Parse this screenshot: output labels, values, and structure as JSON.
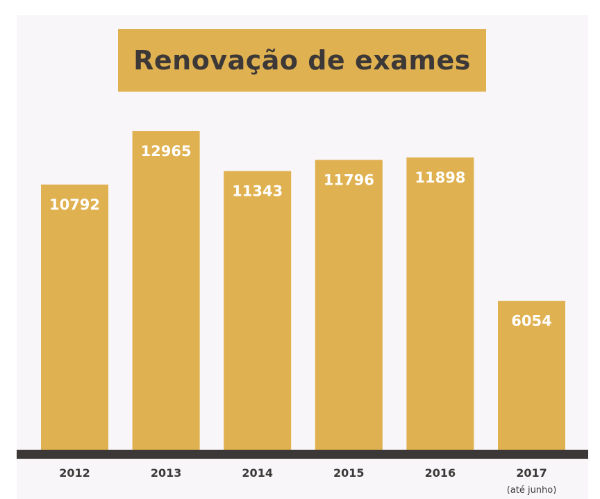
{
  "colors": {
    "background": "#f8f6f8",
    "accent": "#e0b150",
    "title_text": "#3c3838",
    "axis": "#3c3838",
    "bar_label": "#ffffff"
  },
  "chart_data": {
    "type": "bar",
    "title": "Renovação de exames",
    "categories": [
      "2012",
      "2013",
      "2014",
      "2015",
      "2016",
      "2017"
    ],
    "category_notes": [
      "",
      "",
      "",
      "",
      "",
      "(até junho)"
    ],
    "values": [
      10792,
      12965,
      11343,
      11796,
      11898,
      6054
    ],
    "data_labels": [
      "10792",
      "12965",
      "11343",
      "11796",
      "11898",
      "6054"
    ],
    "xlabel": "",
    "ylabel": "",
    "ylim": [
      0,
      13300
    ],
    "grid": false,
    "legend": "none"
  }
}
